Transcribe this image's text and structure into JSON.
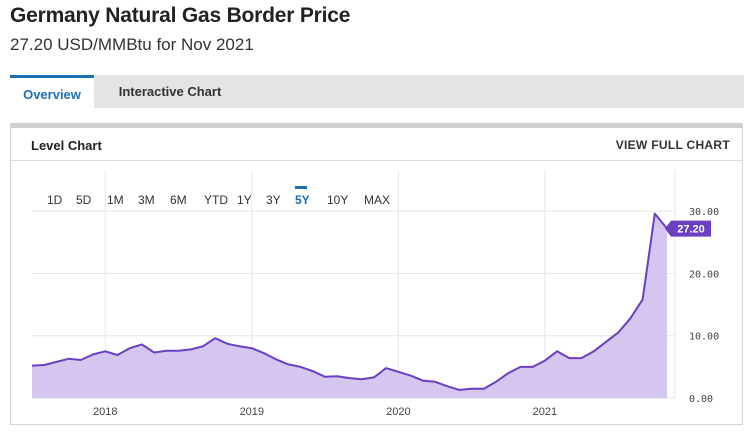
{
  "header": {
    "title": "Germany Natural Gas Border Price",
    "subtitle": "27.20 USD/MMBtu for Nov 2021"
  },
  "tabs": [
    {
      "label": "Overview",
      "active": true
    },
    {
      "label": "Interactive Chart",
      "active": false
    }
  ],
  "panel": {
    "title": "Level Chart",
    "link": "VIEW FULL CHART"
  },
  "range_buttons": [
    {
      "label": "1D",
      "active": false
    },
    {
      "label": "5D",
      "active": false
    },
    {
      "label": "1M",
      "active": false
    },
    {
      "label": "3M",
      "active": false
    },
    {
      "label": "6M",
      "active": false
    },
    {
      "label": "YTD",
      "active": false
    },
    {
      "label": "1Y",
      "active": false
    },
    {
      "label": "3Y",
      "active": false
    },
    {
      "label": "5Y",
      "active": true
    },
    {
      "label": "10Y",
      "active": false
    },
    {
      "label": "MAX",
      "active": false
    }
  ],
  "colors": {
    "accent": "#1a6fb5",
    "line": "#6a3fc2",
    "area": "#d5c6f0",
    "tag": "#6a3fc2"
  },
  "chart_data": {
    "type": "area",
    "title": "",
    "xlabel": "",
    "ylabel": "",
    "ylim": [
      0,
      35
    ],
    "yticks": [
      "0.00",
      "10.00",
      "20.00",
      "30.00"
    ],
    "xtick_labels": [
      "2018",
      "2019",
      "2020",
      "2021"
    ],
    "last_value_label": "27.20",
    "x": [
      "2017-07",
      "2017-08",
      "2017-09",
      "2017-10",
      "2017-11",
      "2017-12",
      "2018-01",
      "2018-02",
      "2018-03",
      "2018-04",
      "2018-05",
      "2018-06",
      "2018-07",
      "2018-08",
      "2018-09",
      "2018-10",
      "2018-11",
      "2018-12",
      "2019-01",
      "2019-02",
      "2019-03",
      "2019-04",
      "2019-05",
      "2019-06",
      "2019-07",
      "2019-08",
      "2019-09",
      "2019-10",
      "2019-11",
      "2019-12",
      "2020-01",
      "2020-02",
      "2020-03",
      "2020-04",
      "2020-05",
      "2020-06",
      "2020-07",
      "2020-08",
      "2020-09",
      "2020-10",
      "2020-11",
      "2020-12",
      "2021-01",
      "2021-02",
      "2021-03",
      "2021-04",
      "2021-05",
      "2021-06",
      "2021-07",
      "2021-08",
      "2021-09",
      "2021-10",
      "2021-11"
    ],
    "series": [
      {
        "values": [
          5.2,
          5.3,
          5.8,
          6.3,
          6.1,
          7.0,
          7.5,
          6.9,
          8.0,
          8.6,
          7.3,
          7.6,
          7.6,
          7.8,
          8.3,
          9.6,
          8.7,
          8.3,
          8.0,
          7.2,
          6.2,
          5.4,
          5.0,
          4.3,
          3.4,
          3.5,
          3.2,
          3.0,
          3.3,
          4.8,
          4.2,
          3.6,
          2.8,
          2.6,
          1.9,
          1.3,
          1.5,
          1.5,
          2.6,
          4.0,
          5.0,
          5.0,
          6.0,
          7.5,
          6.4,
          6.4,
          7.5,
          9.0,
          10.5,
          12.8,
          15.8,
          29.6,
          27.2
        ]
      }
    ]
  }
}
